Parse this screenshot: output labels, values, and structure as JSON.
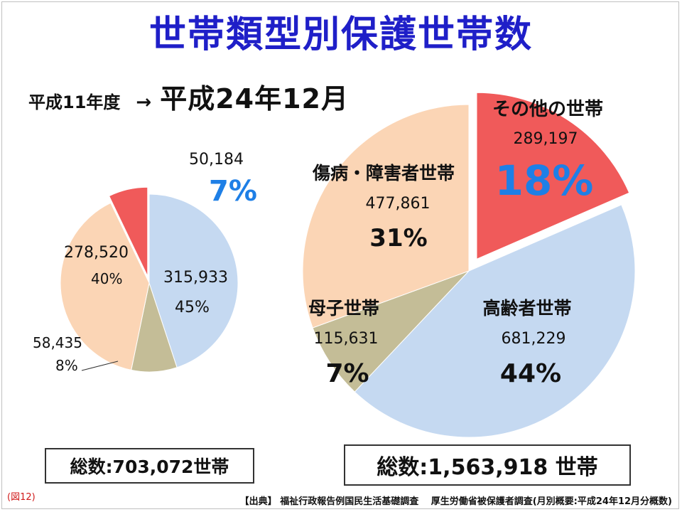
{
  "title": "世帯類型別保護世帯数",
  "subtitle": {
    "from": "平成11年度",
    "arrow": "→",
    "to": "平成24年12月"
  },
  "colors": {
    "other": "#f05a5a",
    "disabled": "#fbd5b5",
    "elderly": "#c5d9f1",
    "single_mother": "#c4bd97",
    "title": "#1f1fc8",
    "pct_accent": "#1e7fe6"
  },
  "chart_data": [
    {
      "type": "pie",
      "period": "平成11年度",
      "start_angle_deg": 0,
      "total_label": "総数:703,072世帯",
      "slices": [
        {
          "key": "elderly",
          "value": 315933,
          "value_label": "315,933",
          "pct_label": "45%"
        },
        {
          "key": "single_mother",
          "value": 58435,
          "value_label": "58,435",
          "pct_label": "8%"
        },
        {
          "key": "disabled",
          "value": 278520,
          "value_label": "278,520",
          "pct_label": "40%"
        },
        {
          "key": "other",
          "value": 50184,
          "value_label": "50,184",
          "pct_label": "7%",
          "exploded": true
        }
      ]
    },
    {
      "type": "pie",
      "period": "平成24年12月",
      "start_angle_deg": 0,
      "total_label": "総数:1,563,918 世帯",
      "slices": [
        {
          "key": "other",
          "name": "その他の世帯",
          "value": 289197,
          "value_label": "289,197",
          "pct_label": "18%",
          "exploded": true
        },
        {
          "key": "elderly",
          "name": "高齢者世帯",
          "value": 681229,
          "value_label": "681,229",
          "pct_label": "44%"
        },
        {
          "key": "single_mother",
          "name": "母子世帯",
          "value": 115631,
          "value_label": "115,631",
          "pct_label": "7%"
        },
        {
          "key": "disabled",
          "name": "傷病・障害者世帯",
          "value": 477861,
          "value_label": "477,861",
          "pct_label": "31%"
        }
      ]
    }
  ],
  "figure_label": "(図12)",
  "source": "【出典】 福祉行政報告例国民生活基礎調査　 厚生労働省被保護者調査(月別概要:平成24年12月分概数)"
}
